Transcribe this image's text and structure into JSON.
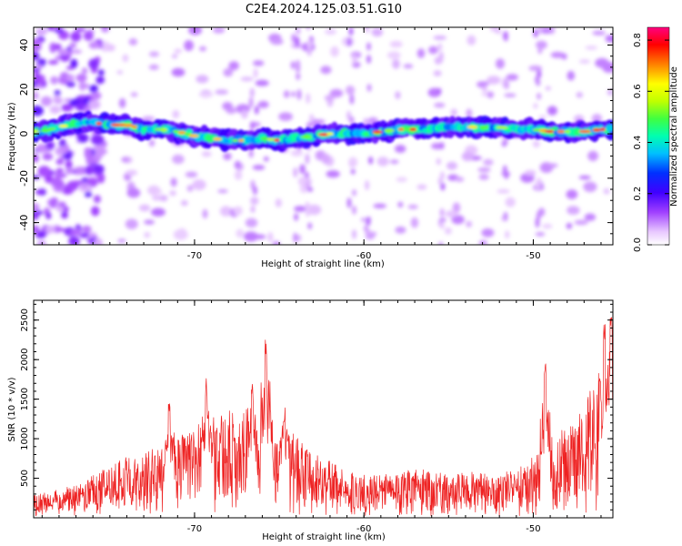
{
  "figure": {
    "title": "C2E4.2024.125.03.51.G10"
  },
  "chart_data": [
    {
      "type": "heatmap",
      "xlabel": "Height of straight line (km)",
      "ylabel": "Frequency (Hz)",
      "xlim": [
        -79.5,
        -45.3
      ],
      "ylim": [
        -50,
        48
      ],
      "xticks": [
        -70,
        -60,
        -50
      ],
      "yticks": [
        -40,
        -20,
        0,
        20,
        40
      ],
      "ridge_frequency_hz": [
        [
          -79,
          1
        ],
        [
          -78,
          3
        ],
        [
          -77,
          5
        ],
        [
          -76,
          5
        ],
        [
          -75,
          4
        ],
        [
          -74,
          4
        ],
        [
          -73,
          2
        ],
        [
          -72,
          2
        ],
        [
          -71,
          1
        ],
        [
          -70,
          -1
        ],
        [
          -69,
          -2
        ],
        [
          -68,
          -3
        ],
        [
          -67,
          -3
        ],
        [
          -66,
          -2
        ],
        [
          -65,
          -3
        ],
        [
          -64,
          -2
        ],
        [
          -63,
          -1
        ],
        [
          -62,
          0
        ],
        [
          -61,
          0
        ],
        [
          -60,
          0
        ],
        [
          -59,
          1
        ],
        [
          -58,
          2
        ],
        [
          -57,
          2
        ],
        [
          -56,
          2
        ],
        [
          -55,
          3
        ],
        [
          -54,
          3
        ],
        [
          -53,
          3
        ],
        [
          -52,
          3
        ],
        [
          -51,
          2
        ],
        [
          -50,
          2
        ],
        [
          -49,
          1
        ],
        [
          -48,
          1
        ],
        [
          -47,
          1
        ],
        [
          -46,
          2
        ],
        [
          -45.5,
          2
        ]
      ],
      "colorbar": {
        "label": "Normalized spectral amplitude",
        "range": [
          0,
          0.85
        ],
        "ticks": [
          0.0,
          0.2,
          0.4,
          0.6,
          0.8
        ]
      }
    },
    {
      "type": "line",
      "xlabel": "Height of straight line (km)",
      "ylabel": "SNR (10 * v/v)",
      "xlim": [
        -79.5,
        -45.3
      ],
      "ylim": [
        0,
        2750
      ],
      "xticks": [
        -70,
        -60,
        -50
      ],
      "yticks": [
        500,
        1000,
        1500,
        2000,
        2500
      ],
      "color": "#ee2222",
      "envelope": [
        [
          -79.5,
          250
        ],
        [
          -78,
          300
        ],
        [
          -77,
          350
        ],
        [
          -76,
          450
        ],
        [
          -75,
          550
        ],
        [
          -74,
          650
        ],
        [
          -73,
          700
        ],
        [
          -72,
          750
        ],
        [
          -71,
          900
        ],
        [
          -70,
          950
        ],
        [
          -69,
          1100
        ],
        [
          -68,
          1150
        ],
        [
          -67,
          1200
        ],
        [
          -66,
          1300
        ],
        [
          -65,
          1050
        ],
        [
          -64,
          850
        ],
        [
          -63,
          700
        ],
        [
          -62,
          600
        ],
        [
          -61,
          500
        ],
        [
          -60,
          450
        ],
        [
          -59,
          480
        ],
        [
          -58,
          500
        ],
        [
          -57,
          520
        ],
        [
          -56,
          500
        ],
        [
          -55,
          450
        ],
        [
          -54,
          480
        ],
        [
          -53,
          500
        ],
        [
          -52,
          480
        ],
        [
          -51,
          500
        ],
        [
          -50,
          650
        ],
        [
          -49,
          850
        ],
        [
          -48,
          1000
        ],
        [
          -47,
          1200
        ],
        [
          -46,
          1600
        ],
        [
          -45.3,
          1900
        ]
      ],
      "peaks": [
        [
          -71.5,
          1450
        ],
        [
          -69.3,
          1800
        ],
        [
          -66.6,
          1750
        ],
        [
          -65.8,
          2330
        ],
        [
          -64.7,
          1400
        ],
        [
          -49.3,
          1980
        ],
        [
          -45.8,
          2450
        ],
        [
          -45.4,
          2750
        ]
      ]
    }
  ]
}
